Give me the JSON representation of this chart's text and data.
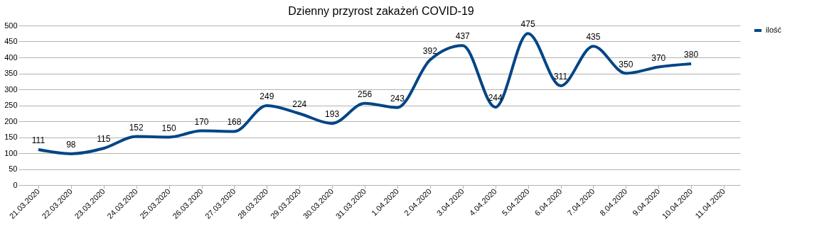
{
  "chart_data": {
    "type": "line",
    "title": "Dzienny przyrost zakażeń COVID-19",
    "categories": [
      "21.03.2020",
      "22.03.2020",
      "23.03.2020",
      "24.03.2020",
      "25.03.2020",
      "26.03.2020",
      "27.03.2020",
      "28.03.2020",
      "29.03.2020",
      "30.03.2020",
      "31.03.2020",
      "1.04.2020",
      "2.04.2020",
      "3.04.2020",
      "4.04.2020",
      "5.04.2020",
      "6.04.2020",
      "7.04.2020",
      "8.04.2020",
      "9.04.2020",
      "10.04.2020",
      "11.04.2020"
    ],
    "series": [
      {
        "name": "ilość",
        "color": "#004586",
        "values": [
          111,
          98,
          115,
          152,
          150,
          170,
          168,
          249,
          224,
          193,
          256,
          243,
          392,
          437,
          244,
          475,
          311,
          435,
          350,
          370,
          380,
          null
        ]
      }
    ],
    "ylim": [
      0,
      500
    ],
    "yticks": [
      0,
      50,
      100,
      150,
      200,
      250,
      300,
      350,
      400,
      450,
      500
    ],
    "grid": "y",
    "legend": "right",
    "data_labels": true,
    "marker": "none",
    "line_style": "solid"
  }
}
